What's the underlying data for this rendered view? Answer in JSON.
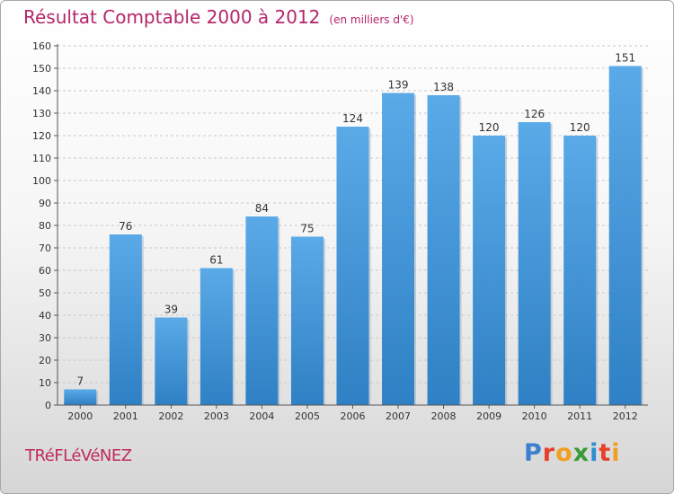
{
  "title": "Résultat Comptable 2000 à 2012",
  "subtitle": "(en milliers d'€)",
  "commune": "TRéFLéVéNEZ",
  "brand": {
    "letters": [
      "P",
      "r",
      "o",
      "x",
      "i",
      "t",
      "i"
    ],
    "colors": [
      "#3a7fd0",
      "#e8402a",
      "#f0a020",
      "#3a9a3a",
      "#2a8fd0",
      "#e8402a",
      "#f0a020"
    ]
  },
  "colors": {
    "bar_top": "#5aaae8",
    "bar_bottom": "#2f80c4",
    "title": "#b5256b",
    "grid": "#c8c8c8"
  },
  "chart_data": {
    "type": "bar",
    "categories": [
      "2000",
      "2001",
      "2002",
      "2003",
      "2004",
      "2005",
      "2006",
      "2007",
      "2008",
      "2009",
      "2010",
      "2011",
      "2012"
    ],
    "values": [
      7,
      76,
      39,
      61,
      84,
      75,
      124,
      139,
      138,
      120,
      126,
      120,
      151
    ],
    "ylim": [
      0,
      160
    ],
    "yticks": [
      0,
      10,
      20,
      30,
      40,
      50,
      60,
      70,
      80,
      90,
      100,
      110,
      120,
      130,
      140,
      150,
      160
    ],
    "grid": true
  }
}
